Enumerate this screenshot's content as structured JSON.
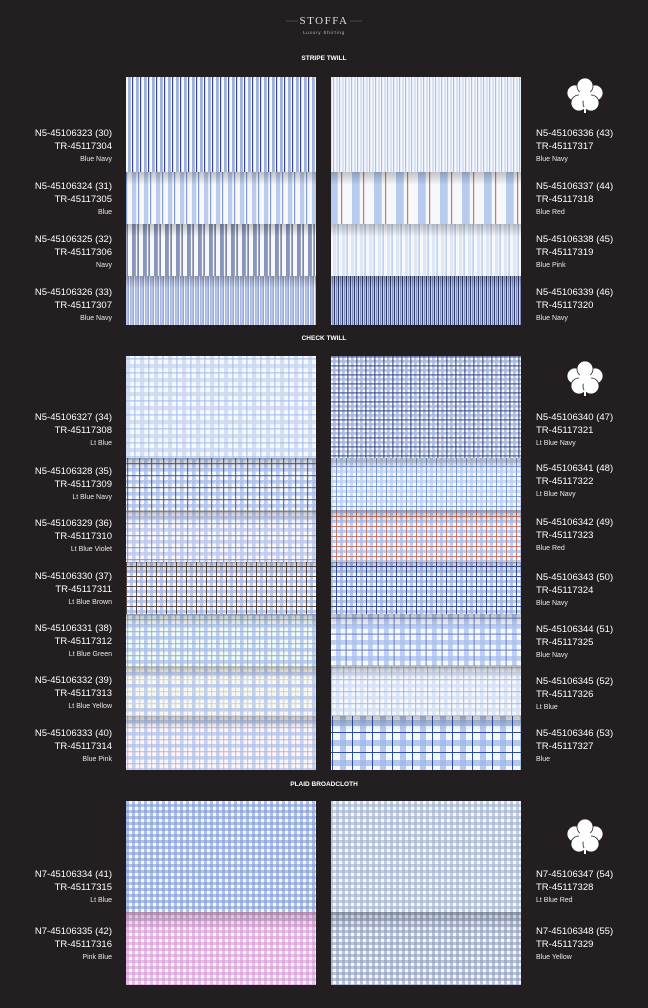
{
  "header": {
    "brand": "STOFFA",
    "tagline": "Luxury Shirting"
  },
  "sections": [
    {
      "title": "STRIPE TWILL",
      "left": [
        {
          "code": "N5-45106323 (30)",
          "ref": "TR-45117304",
          "colorway": "Blue Navy"
        },
        {
          "code": "N5-45106324 (31)",
          "ref": "TR-45117305",
          "colorway": "Blue"
        },
        {
          "code": "N5-45106325 (32)",
          "ref": "TR-45117306",
          "colorway": "Navy"
        },
        {
          "code": "N5-45106326 (33)",
          "ref": "TR-45117307",
          "colorway": "Blue Navy"
        }
      ],
      "right": [
        {
          "code": "N5-45106336 (43)",
          "ref": "TR-45117317",
          "colorway": "Blue Navy"
        },
        {
          "code": "N5-45106337 (44)",
          "ref": "TR-45117318",
          "colorway": "Blue  Red"
        },
        {
          "code": "N5-45106338 (45)",
          "ref": "TR-45117319",
          "colorway": "Blue Pink"
        },
        {
          "code": "N5-45106339 (46)",
          "ref": "TR-45117320",
          "colorway": "Blue Navy"
        }
      ]
    },
    {
      "title": "CHECK TWILL",
      "left": [
        {
          "code": "N5-45106327 (34)",
          "ref": "TR-45117308",
          "colorway": "Lt Blue"
        },
        {
          "code": "N5-45106328 (35)",
          "ref": "TR-45117309",
          "colorway": "Lt Blue Navy"
        },
        {
          "code": "N5-45106329 (36)",
          "ref": "TR-45117310",
          "colorway": "Lt Blue Violet"
        },
        {
          "code": "N5-45106330 (37)",
          "ref": "TR-45117311",
          "colorway": "Lt Blue Brown"
        },
        {
          "code": "N5-45106331 (38)",
          "ref": "TR-45117312",
          "colorway": "Lt Blue Green"
        },
        {
          "code": "N5-45106332 (39)",
          "ref": "TR-45117313",
          "colorway": "Lt Blue Yellow"
        },
        {
          "code": "N5-45106333 (40)",
          "ref": "TR-45117314",
          "colorway": "Blue Pink"
        }
      ],
      "right": [
        {
          "code": "N5-45106340 (47)",
          "ref": "TR-45117321",
          "colorway": "Lt Blue Navy"
        },
        {
          "code": "N5-45106341 (48)",
          "ref": "TR-45117322",
          "colorway": "Lt Blue Navy"
        },
        {
          "code": "N5-45106342 (49)",
          "ref": "TR-45117323",
          "colorway": "Blue Red"
        },
        {
          "code": "N5-45106343 (50)",
          "ref": "TR-45117324",
          "colorway": "Blue Navy"
        },
        {
          "code": "N5-45106344 (51)",
          "ref": "TR-45117325",
          "colorway": "Blue Navy"
        },
        {
          "code": "N5-45106345 (52)",
          "ref": "TR-45117326",
          "colorway": "Lt Blue"
        },
        {
          "code": "N5-45106346 (53)",
          "ref": "TR-45117327",
          "colorway": "Blue"
        }
      ]
    },
    {
      "title": "PLAID BROADCLOTH",
      "left": [
        {
          "code": "N7-45106334 (41)",
          "ref": "TR-45117315",
          "colorway": "Lt Blue"
        },
        {
          "code": "N7-45106335 (42)",
          "ref": "TR-45117316",
          "colorway": "Pink Blue"
        }
      ],
      "right": [
        {
          "code": "N7-45106347 (54)",
          "ref": "TR-45117328",
          "colorway": "Lt Blue Red"
        },
        {
          "code": "N7-45106348 (55)",
          "ref": "TR-45117329",
          "colorway": "Blue Yellow"
        }
      ]
    }
  ]
}
